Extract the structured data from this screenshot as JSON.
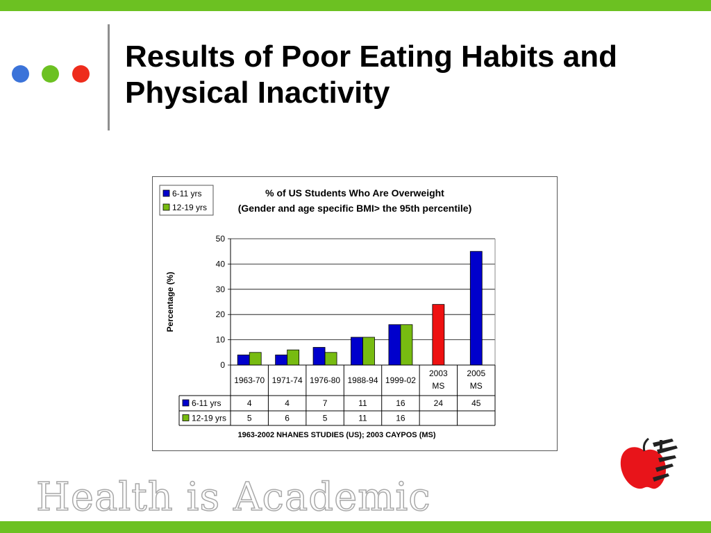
{
  "slide": {
    "title": "Results of Poor Eating Habits and Physical Inactivity",
    "footer_logo_text": "Health is Academic",
    "colors": {
      "accent_green": "#6cc122",
      "dot_blue": "#3b73d9",
      "dot_green": "#6cc122",
      "dot_red": "#ee2c1c",
      "apple_red": "#e8141a"
    },
    "icons": [
      "apple-logo-icon"
    ]
  },
  "chart_data": {
    "type": "bar",
    "title": "% of US Students Who Are Overweight",
    "subtitle": "(Gender and age specific BMI> the 95th percentile)",
    "xlabel": "1963-2002 NHANES STUDIES (US); 2003 CAYPOS (MS)",
    "ylabel": "Percentage (%)",
    "ylim": [
      0,
      50
    ],
    "yticks": [
      0,
      10,
      20,
      30,
      40,
      50
    ],
    "grid": true,
    "legend_position": "top-left",
    "categories": [
      "1963-70",
      "1971-74",
      "1976-80",
      "1988-94",
      "1999-02",
      "2003 MS",
      "2005 MS"
    ],
    "series": [
      {
        "name": "6-11 yrs",
        "color": "#0000cc",
        "values": [
          4,
          4,
          7,
          11,
          16,
          null,
          45
        ]
      },
      {
        "name": "12-19 yrs",
        "color": "#77bb11",
        "values": [
          5,
          6,
          5,
          11,
          16,
          null,
          null
        ]
      }
    ],
    "highlight": {
      "category": "2003 MS",
      "value": 24,
      "color": "#ee1111",
      "table_series": "6-11 yrs"
    },
    "table": {
      "rows": [
        {
          "label": "6-11 yrs",
          "cells": [
            "4",
            "4",
            "7",
            "11",
            "16",
            "24",
            "45"
          ]
        },
        {
          "label": "12-19 yrs",
          "cells": [
            "5",
            "6",
            "5",
            "11",
            "16",
            "",
            ""
          ]
        }
      ]
    }
  }
}
